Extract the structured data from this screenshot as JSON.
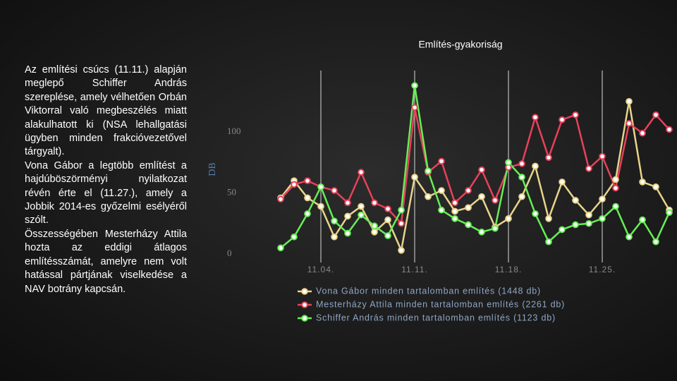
{
  "text": {
    "paragraphs": [
      "Az említési csúcs (11.11.) alapján meglepő Schiffer András szereplése, amely vélhetően Orbán Viktorral való megbeszélés miatt alakulhatott ki (NSA lehallgatási ügyben minden frakcióvezetővel tárgyalt).",
      "Vona Gábor a legtöbb említést a hajdúböszörményi nyilatkozat révén érte el (11.27.), amely a Jobbik 2014-es győzelmi esélyéről szólt.",
      "Összességében Mesterházy Attila hozta az eddigi átlagos említésszámát, amelyre nem volt hatással pártjának viselkedése a NAV botrány kapcsán."
    ]
  },
  "chart_data": {
    "type": "line",
    "title": "Említés-gyakoriság",
    "y_label": "DB",
    "categories": [
      null,
      null,
      null,
      "11.04.",
      null,
      null,
      null,
      null,
      null,
      null,
      "11.11.",
      null,
      null,
      null,
      null,
      null,
      null,
      "11.18.",
      null,
      null,
      null,
      null,
      null,
      null,
      "11.25.",
      null,
      null,
      null,
      null,
      null
    ],
    "series": [
      {
        "name": "Vona Gábor minden tartalomban említés (1448 db)",
        "color": "#e8d48a",
        "values": [
          46,
          60,
          46,
          39,
          14,
          31,
          39,
          18,
          28,
          3,
          63,
          47,
          52,
          35,
          38,
          47,
          22,
          29,
          47,
          72,
          29,
          59,
          44,
          32,
          45,
          61,
          125,
          59,
          55,
          36
        ]
      },
      {
        "name": "Mesterházy Attila minden tartalomban említés (2261 db)",
        "color": "#e8415a",
        "values": [
          45,
          57,
          60,
          55,
          52,
          42,
          67,
          42,
          37,
          25,
          120,
          67,
          76,
          42,
          52,
          69,
          44,
          71,
          74,
          112,
          79,
          110,
          114,
          70,
          80,
          54,
          107,
          99,
          114,
          102
        ]
      },
      {
        "name": "Schiffer András minden tartalomban említés (1123 db)",
        "color": "#66ee55",
        "values": [
          5,
          14,
          33,
          55,
          27,
          17,
          32,
          23,
          15,
          36,
          138,
          68,
          36,
          29,
          24,
          18,
          21,
          75,
          63,
          33,
          10,
          20,
          24,
          25,
          29,
          39,
          14,
          28,
          10,
          34
        ]
      }
    ],
    "ylim": [
      0,
      150
    ],
    "yticks": [
      0,
      50,
      100
    ],
    "x_grid": true
  }
}
